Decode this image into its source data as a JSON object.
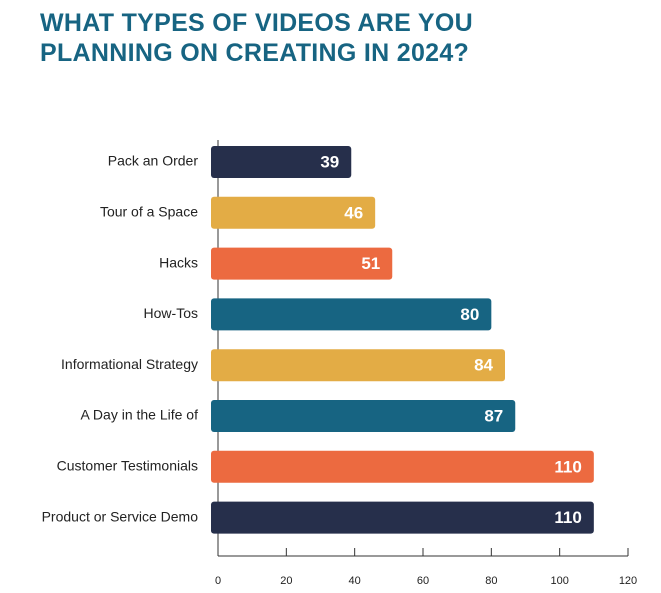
{
  "chart_data": {
    "type": "bar",
    "orientation": "horizontal",
    "title": "WHAT TYPES OF VIDEOS ARE YOU PLANNING ON CREATING IN 2024?",
    "categories": [
      "Pack an Order",
      "Tour of a Space",
      "Hacks",
      "How-Tos",
      "Informational Strategy",
      "A Day in the Life of",
      "Customer Testimonials",
      "Product or Service Demo"
    ],
    "values": [
      39,
      46,
      51,
      80,
      84,
      87,
      110,
      110
    ],
    "colors": [
      "#262f4b",
      "#e3ac45",
      "#ec6a40",
      "#176482",
      "#e3ac45",
      "#176482",
      "#ec6a40",
      "#262f4b"
    ],
    "xlim": [
      0,
      120
    ],
    "xticks": [
      0,
      20,
      40,
      60,
      80,
      100,
      120
    ]
  }
}
